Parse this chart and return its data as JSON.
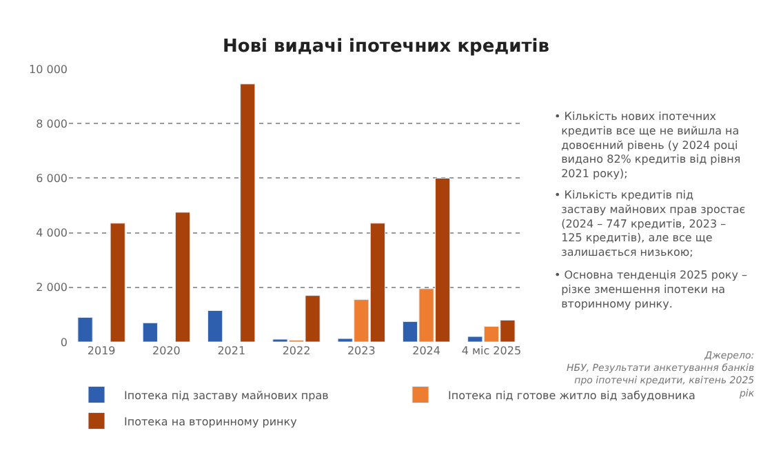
{
  "chart_data": {
    "type": "bar",
    "title": "Нові видачі іпотечних кредитів",
    "categories": [
      "2019",
      "2020",
      "2021",
      "2022",
      "2023",
      "2024",
      "4 міс 2025"
    ],
    "series": [
      {
        "name": "Іпотека під заставу майнових прав",
        "color": "#2e5fae",
        "values": [
          900,
          700,
          1150,
          100,
          125,
          747,
          200
        ]
      },
      {
        "name": "Іпотека під готове житло від забудовника",
        "color": "#ed7d31",
        "values": [
          null,
          null,
          null,
          60,
          1550,
          1950,
          570
        ]
      },
      {
        "name": "Іпотека на вторинному ринку",
        "color": "#a9420a",
        "values": [
          4350,
          4750,
          9450,
          1700,
          4350,
          6000,
          800
        ]
      }
    ],
    "ylim": [
      0,
      10000
    ],
    "yticks": [
      0,
      {
        "value": 2000,
        "label": "2 000"
      },
      {
        "value": 4000,
        "label": "4 000"
      },
      {
        "value": 6000,
        "label": "6 000"
      },
      {
        "value": 8000,
        "label": "8 000"
      },
      {
        "value": 10000,
        "label": "10 000"
      }
    ],
    "grid": "y",
    "legend": "bottom",
    "annotations": [
      "• Кількість нових іпотечних кредитів все ще не вийшла на довоєнний рівень (у 2024 році видано 82% кредитів від рівня 2021 року);",
      "• Кількість кредитів під заставу майнових прав зростає (2024 – 747 кредитів, 2023 – 125 кредитів), але все ще залишається низькою;",
      "• Основна тенденція 2025 року – різке зменшення іпотеки на вторинному ринку.",
      "Джерело: НБУ, Результати анкетування банків про іпотечні кредити, квітень 2025 рік"
    ]
  }
}
